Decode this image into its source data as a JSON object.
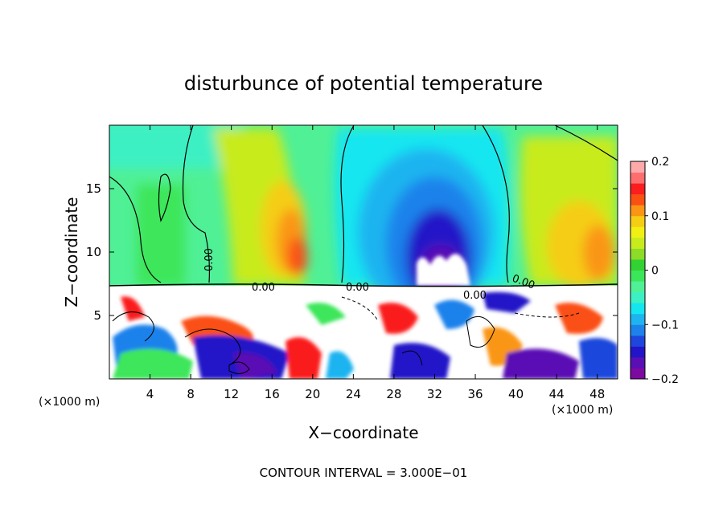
{
  "chart_data": {
    "type": "heatmap",
    "title": "disturbunce of potential temperature",
    "xlabel": "X−coordinate",
    "ylabel": "Z−coordinate",
    "x_unit_left": "(×1000 m)",
    "x_unit_right": "(×1000 m)",
    "xlim": [
      0,
      50
    ],
    "ylim": [
      0,
      20
    ],
    "x_ticks": [
      "4",
      "8",
      "12",
      "16",
      "20",
      "24",
      "28",
      "32",
      "36",
      "40",
      "44",
      "48"
    ],
    "y_ticks": [
      "5",
      "10",
      "15"
    ],
    "colorbar": {
      "range": [
        -0.2,
        0.2
      ],
      "tick_labels": [
        "0.2",
        "0.1",
        "0",
        "−0.1",
        "−0.2"
      ],
      "colors": [
        "#7d0aa0",
        "#5a0fb4",
        "#2314c8",
        "#1e46dc",
        "#1e82eb",
        "#1eb4f0",
        "#14e6f0",
        "#3cf0c3",
        "#50f096",
        "#3ce65a",
        "#32d232",
        "#8cdc28",
        "#c8eb1e",
        "#f0f014",
        "#f5cd14",
        "#fa9614",
        "#fa5014",
        "#fa1e1e",
        "#ff6e6e",
        "#ffaaaa"
      ]
    },
    "contour_labels": [
      "0.00",
      "0.00",
      "0.00",
      "0.00",
      "0.00"
    ],
    "field_summary": [
      {
        "region": "upper layer, x 0–12, z 8–20",
        "value": 0.0
      },
      {
        "region": "warm column, x 14–22, z 8–20",
        "value": 0.1
      },
      {
        "region": "cold dome, x 26–39, z 8–20",
        "value": -0.18
      },
      {
        "region": "warm column, x 40–50, z 8–20",
        "value": 0.1
      },
      {
        "region": "lower layer, z 0–7.5",
        "value": "strong turbulent disturbances beyond ±0.2"
      }
    ],
    "footer": "CONTOUR INTERVAL = 3.000E−01"
  }
}
